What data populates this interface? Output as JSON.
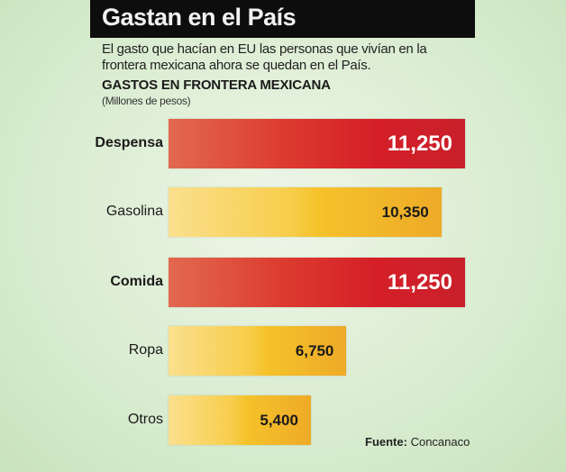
{
  "chart_data": {
    "type": "bar",
    "orientation": "horizontal",
    "title": "Gastan en el País",
    "subtitle": "El gasto que hacían en EU las personas que vivían en la frontera mexicana ahora se quedan en el País.",
    "heading": "GASTOS EN FRONTERA MEXICANA",
    "unit": "(Millones de pesos)",
    "categories": [
      "Despensa",
      "Gasolina",
      "Comida",
      "Ropa",
      "Otros"
    ],
    "values": [
      11250,
      10350,
      11250,
      6750,
      5400
    ],
    "value_labels": [
      "11,250",
      "10,350",
      "11,250",
      "6,750",
      "5,400"
    ],
    "bar_colors": [
      "red",
      "yellow",
      "red",
      "yellow",
      "yellow"
    ],
    "bold_labels": [
      true,
      false,
      true,
      false,
      false
    ],
    "colors": {
      "red": "#d51f28",
      "yellow": "#f5c22a"
    },
    "grid": false,
    "source_label": "Fuente:",
    "source": "Concanaco"
  }
}
